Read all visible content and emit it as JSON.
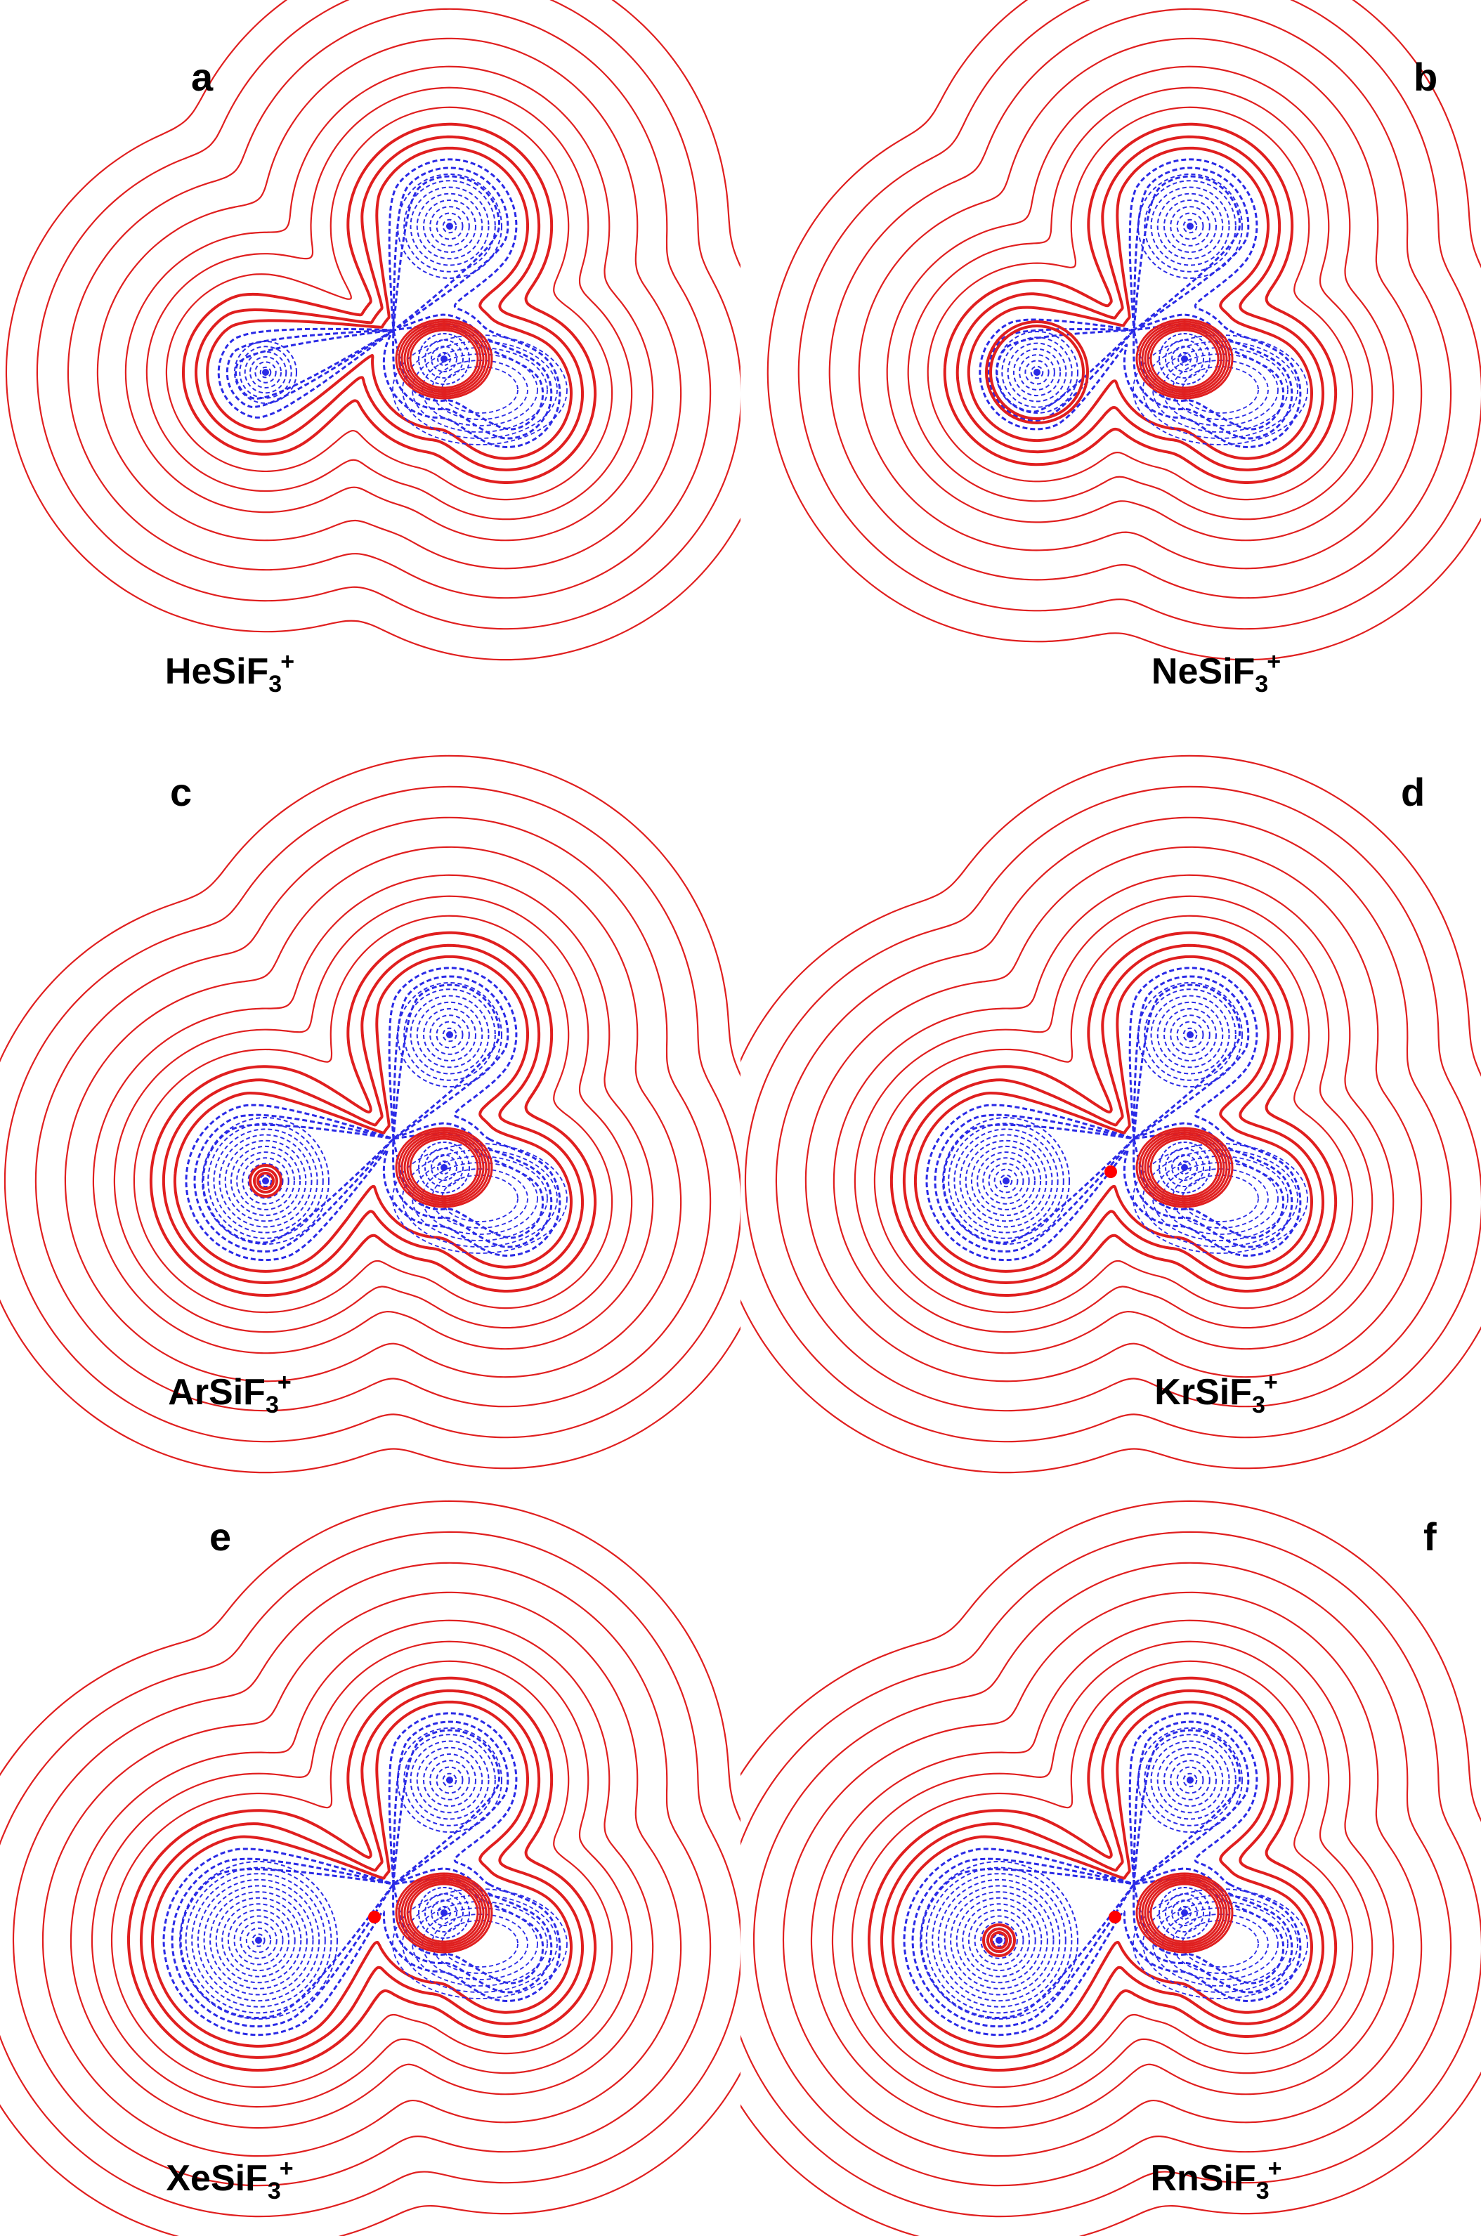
{
  "colors": {
    "positive_contour": "#e01f1f",
    "negative_contour": "#2a2ae6",
    "critical_point": "#ff0000"
  },
  "panels": [
    {
      "letter": "a",
      "species": "HeSiF",
      "subscript": "3",
      "superscript": "+",
      "rg_size": "small",
      "bond_critical_point": false,
      "rg_core_ring": false
    },
    {
      "letter": "b",
      "species": "NeSiF",
      "subscript": "3",
      "superscript": "+",
      "rg_size": "medium-ring",
      "bond_critical_point": false,
      "rg_core_ring": false
    },
    {
      "letter": "c",
      "species": "ArSiF",
      "subscript": "3",
      "superscript": "+",
      "rg_size": "large",
      "bond_critical_point": false,
      "rg_core_ring": true
    },
    {
      "letter": "d",
      "species": "KrSiF",
      "subscript": "3",
      "superscript": "+",
      "rg_size": "large",
      "bond_critical_point": true,
      "rg_core_ring": false
    },
    {
      "letter": "e",
      "species": "XeSiF",
      "subscript": "3",
      "superscript": "+",
      "rg_size": "xlarge",
      "bond_critical_point": true,
      "rg_core_ring": false
    },
    {
      "letter": "f",
      "species": "RnSiF",
      "subscript": "3",
      "superscript": "+",
      "rg_size": "xlarge",
      "bond_critical_point": true,
      "rg_core_ring": true
    }
  ]
}
